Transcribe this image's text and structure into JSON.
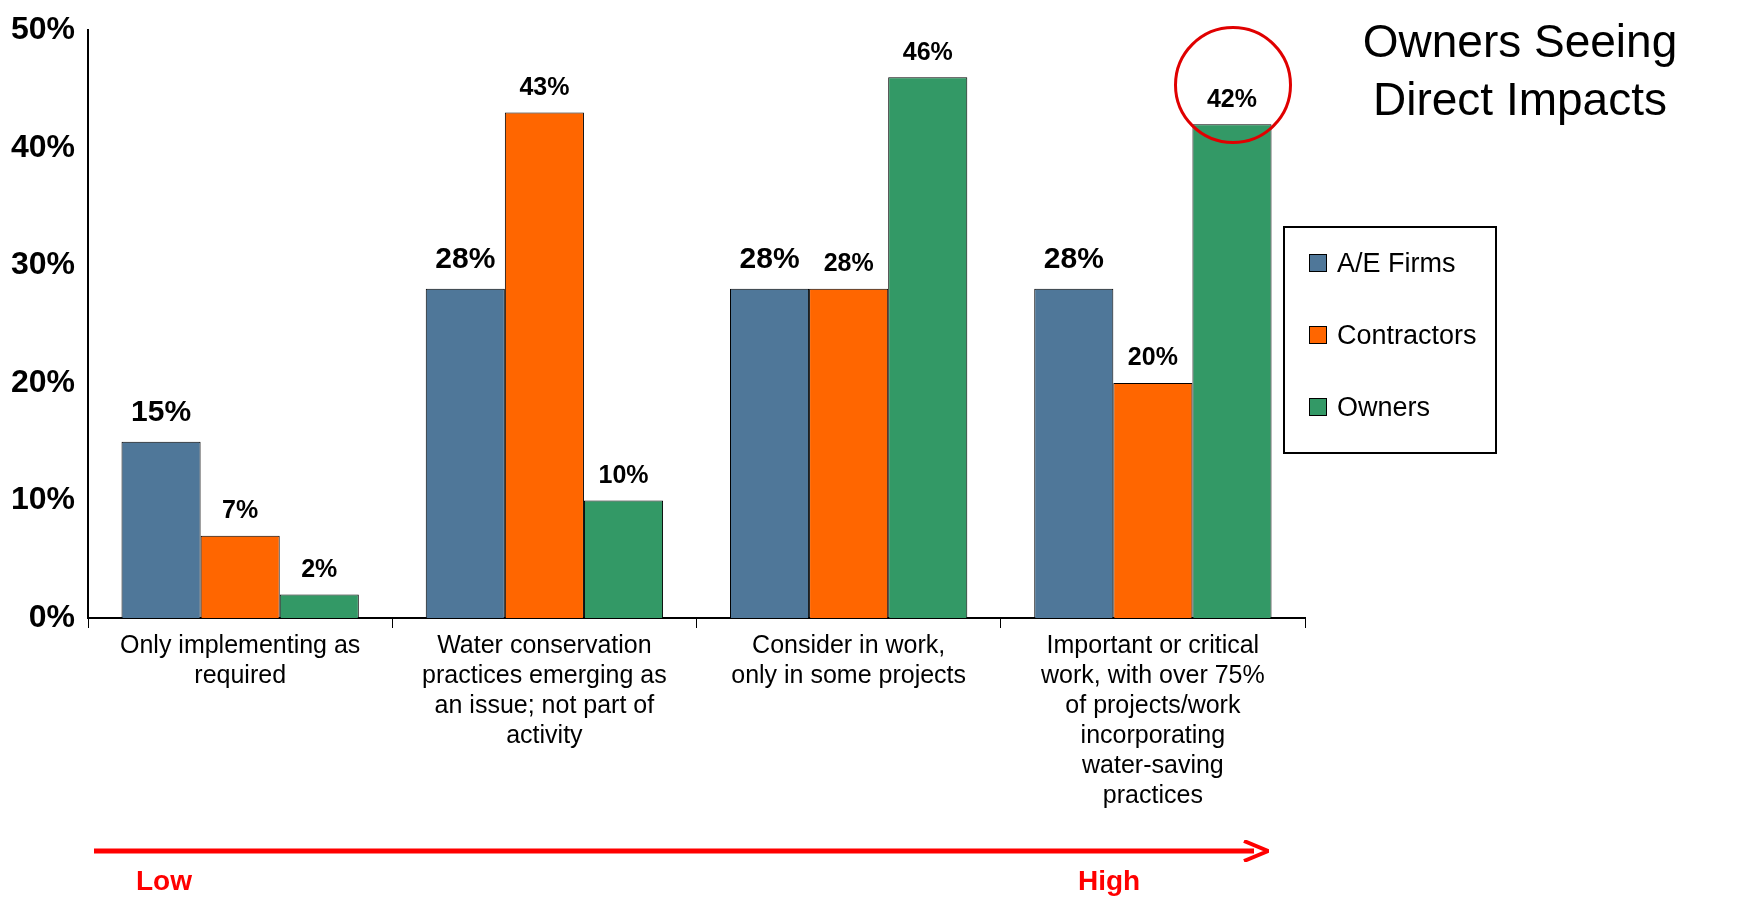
{
  "chart_data": {
    "type": "bar",
    "title": "Owners Seeing Direct Impacts",
    "categories": [
      "Only implementing as required",
      "Water conservation practices emerging as an issue; not part of activity",
      "Consider in work, only in some projects",
      "Important or critical work, with over 75% of projects/work incorporating water-saving practices"
    ],
    "series": [
      {
        "name": "A/E Firms",
        "color": "#4f7799",
        "values": [
          15,
          28,
          28,
          28
        ],
        "value_labels": [
          "15%",
          "28%",
          "28%",
          "28%"
        ]
      },
      {
        "name": "Contractors",
        "color": "#ff6600",
        "values": [
          7,
          43,
          28,
          20
        ],
        "value_labels": [
          "7%",
          "43%",
          "28%",
          "20%"
        ]
      },
      {
        "name": "Owners",
        "color": "#339966",
        "values": [
          2,
          10,
          46,
          42
        ],
        "value_labels": [
          "2%",
          "10%",
          "46%",
          "42%"
        ]
      }
    ],
    "ylim": [
      0,
      50
    ],
    "yticks": [
      {
        "value": 0,
        "label": "0%"
      },
      {
        "value": 10,
        "label": "10%"
      },
      {
        "value": 20,
        "label": "20%"
      },
      {
        "value": 30,
        "label": "30%"
      },
      {
        "value": 40,
        "label": "40%"
      },
      {
        "value": 50,
        "label": "50%"
      }
    ],
    "grid": false,
    "legend": "right",
    "annotations": [
      "Low",
      "High"
    ]
  }
}
